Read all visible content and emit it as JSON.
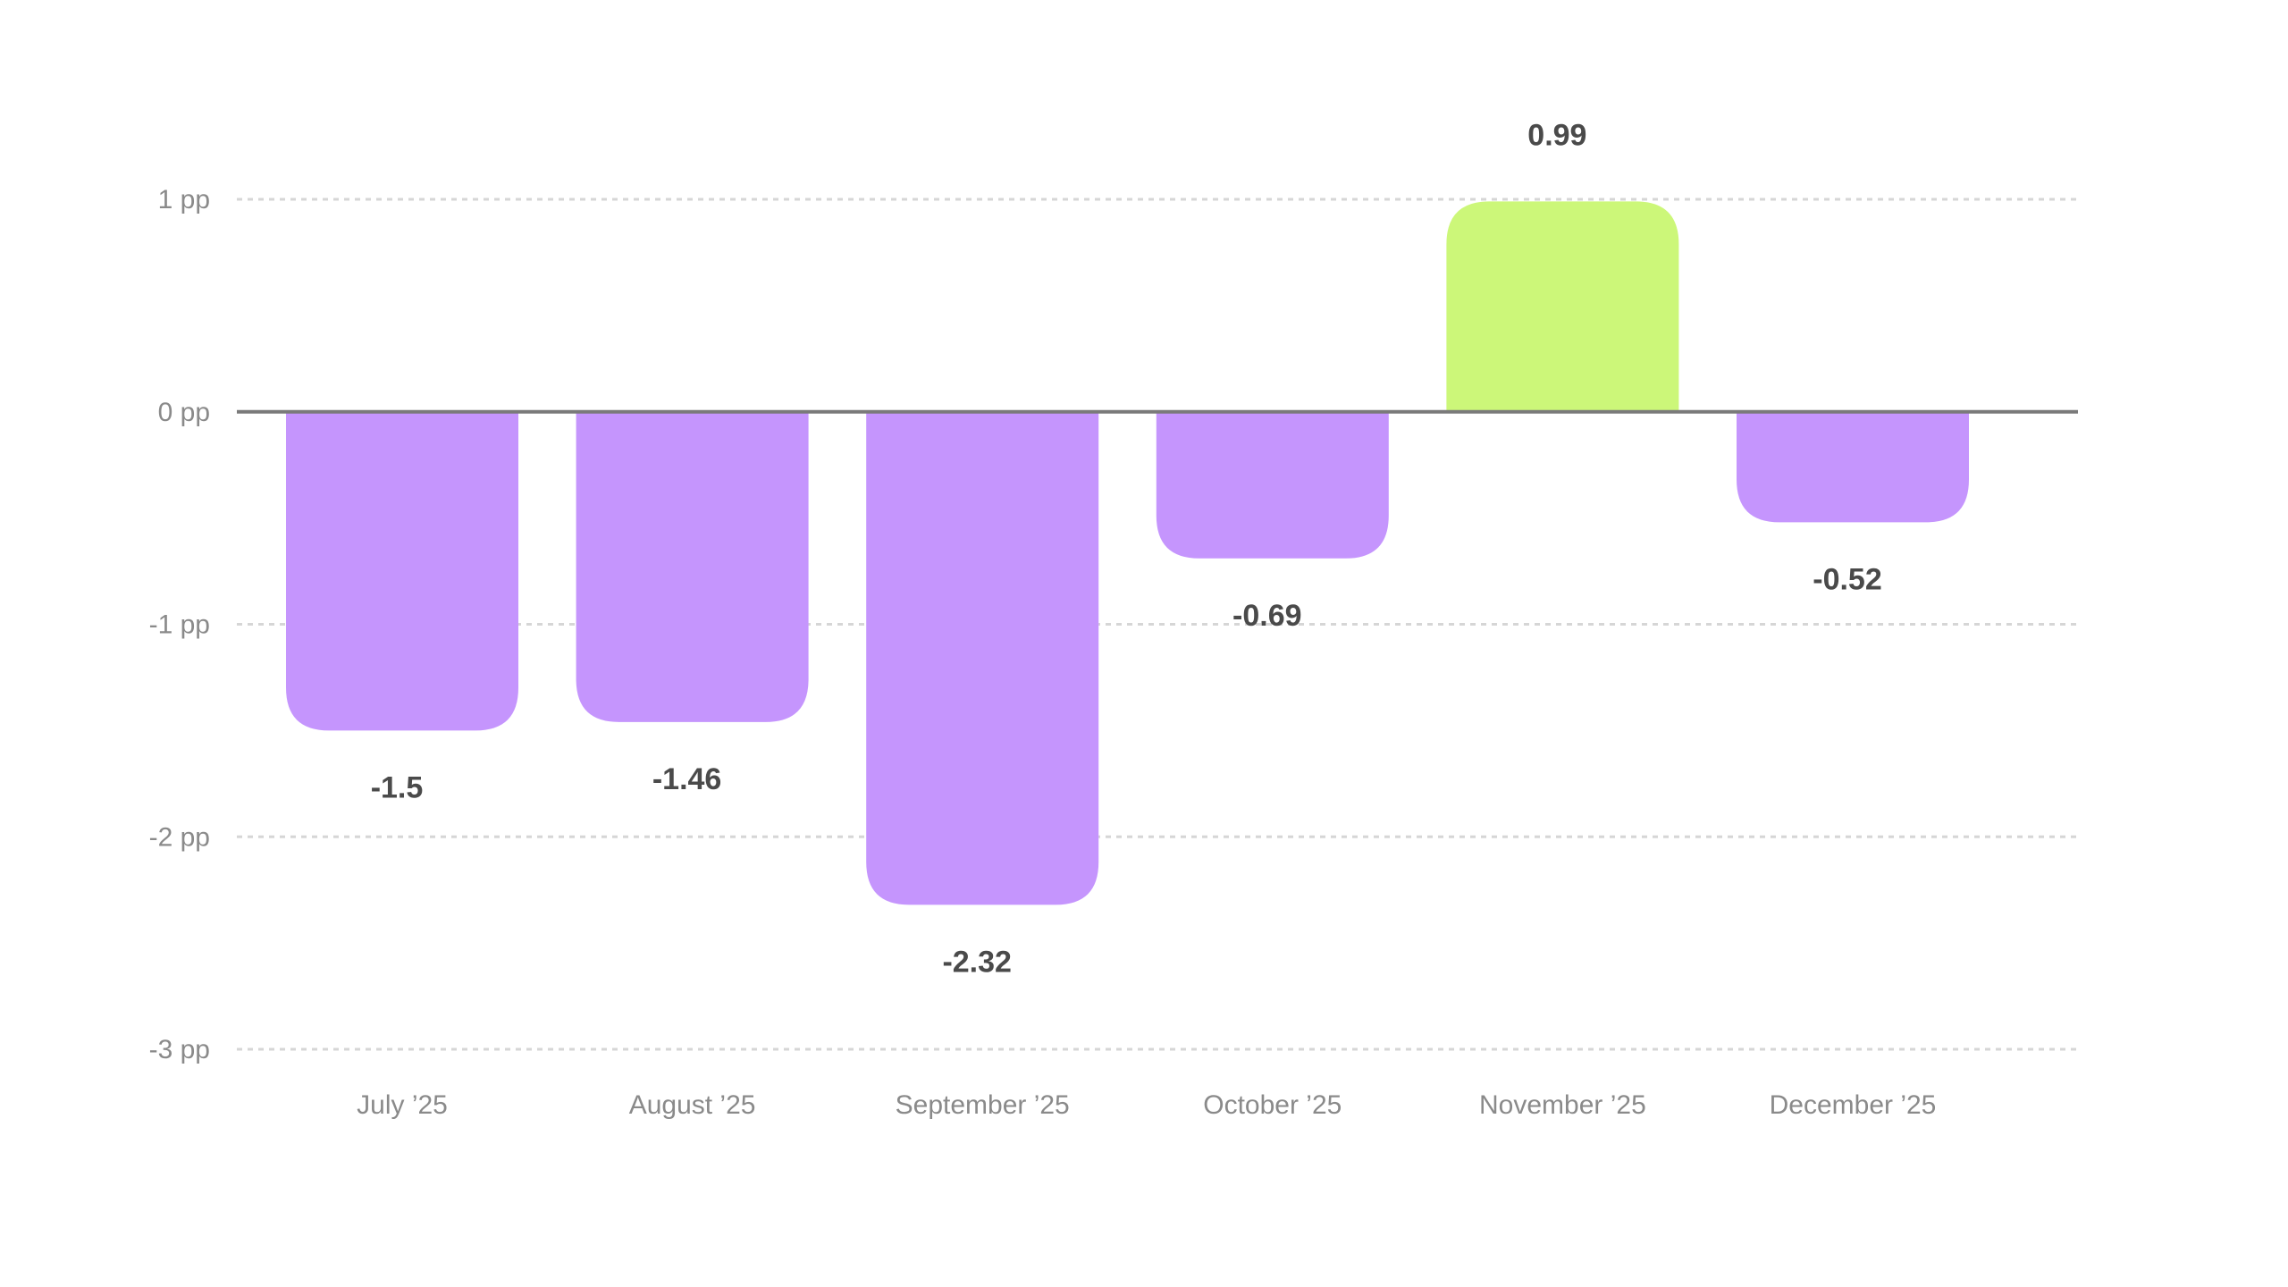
{
  "chart_data": {
    "type": "bar",
    "categories": [
      "July ’25",
      "August ’25",
      "September ’25",
      "October ’25",
      "November ’25",
      "December ’25"
    ],
    "values": [
      -1.5,
      -1.46,
      -2.32,
      -0.69,
      0.99,
      -0.52
    ],
    "value_labels": [
      "-1.5",
      "-1.46",
      "-2.32",
      "-0.69",
      "0.99",
      "-0.52"
    ],
    "yticks": [
      1,
      0,
      -1,
      -2,
      -3
    ],
    "ytick_labels": [
      "1 pp",
      "0 pp",
      "-1 pp",
      "-2 pp",
      "-3 pp"
    ],
    "ylim": [
      -3,
      1
    ],
    "grid": true,
    "legend": "none",
    "colors": {
      "positive": "#ccf779",
      "negative": "#c595fd",
      "zero_line": "#7a7a7a",
      "grid": "#d6d6d6"
    }
  }
}
